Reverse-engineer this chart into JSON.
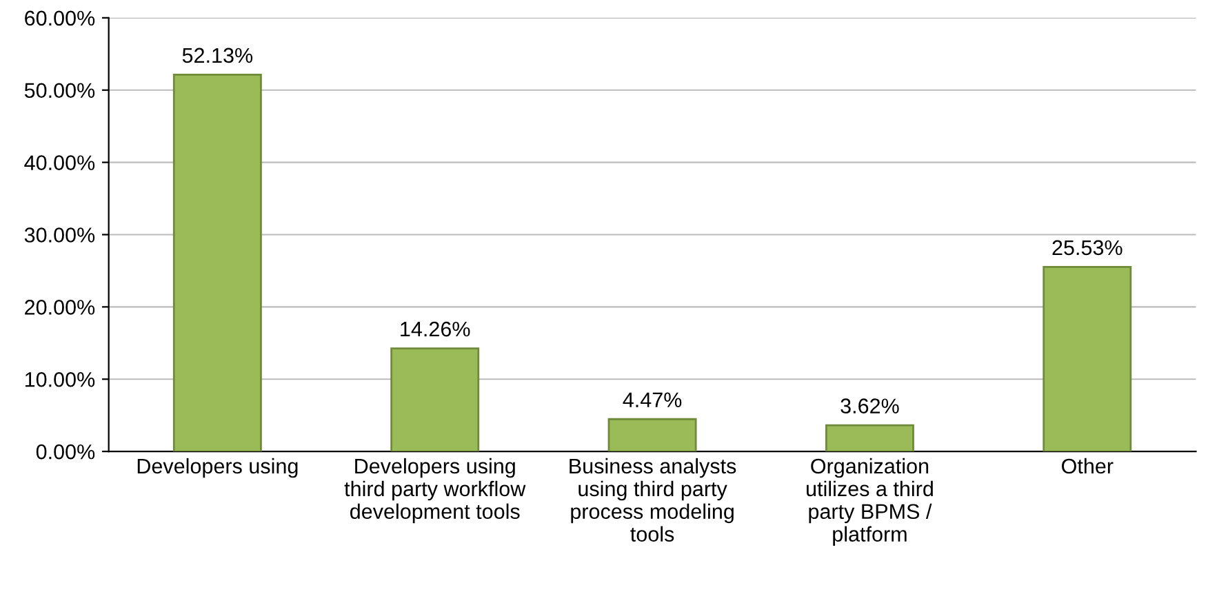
{
  "chart_data": {
    "type": "bar",
    "categories": [
      "Developers using",
      "Developers using third party workflow development tools",
      "Business analysts using third party process modeling tools",
      "Organization utilizes a third party BPMS / platform",
      "Other"
    ],
    "values": [
      52.13,
      14.26,
      4.47,
      3.62,
      25.53
    ],
    "value_labels": [
      "52.13%",
      "14.26%",
      "4.47%",
      "3.62%",
      "25.53%"
    ],
    "color": "#9bbb59",
    "ylim": [
      0,
      60
    ],
    "yticks": [
      {
        "value": 0,
        "label": "0.00%"
      },
      {
        "value": 10,
        "label": "10.00%"
      },
      {
        "value": 20,
        "label": "20.00%"
      },
      {
        "value": 30,
        "label": "30.00%"
      },
      {
        "value": 40,
        "label": "40.00%"
      },
      {
        "value": 50,
        "label": "50.00%"
      },
      {
        "value": 60,
        "label": "60.00%"
      }
    ],
    "grid": "y"
  }
}
